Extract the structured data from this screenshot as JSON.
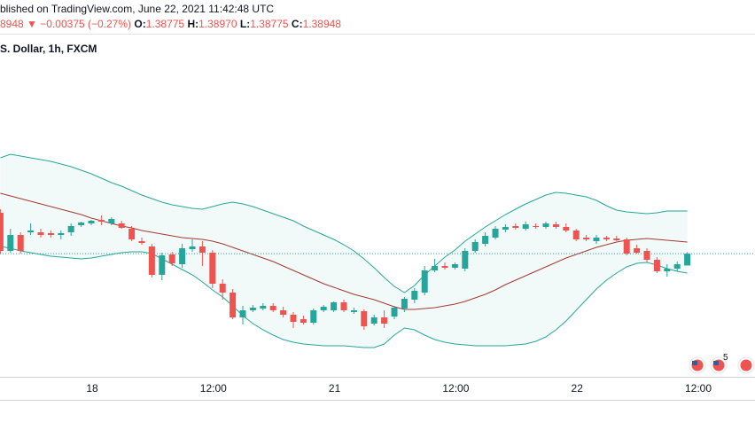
{
  "header": {
    "published": "blished on TradingView.com, June 22, 2021 11:42:48 UTC",
    "last": "8948",
    "arrow": "▼",
    "change": "−0.00375 (−0.27%)",
    "ohlc": [
      {
        "label": "O:",
        "value": "1.38775"
      },
      {
        "label": "H:",
        "value": "1.38970"
      },
      {
        "label": "L:",
        "value": "1.38775"
      },
      {
        "label": "C:",
        "value": "1.38948"
      }
    ]
  },
  "event_count": "5",
  "chart_data": {
    "type": "candlestick",
    "title": "S. Dollar, 1h, FXCM",
    "x_labels": [
      "18",
      "12:00",
      "21",
      "12:00",
      "22",
      "12:00"
    ],
    "ylim": [
      1.37143,
      1.42148
    ],
    "up_color": "#26a69a",
    "down_color": "#ef5350",
    "band_color": "#26a69a",
    "basis_color": "#a33a32",
    "candles": [
      [
        1.39548,
        1.396,
        1.3895,
        1.38989
      ],
      [
        1.38989,
        1.39314,
        1.38963,
        1.39223
      ],
      [
        1.39223,
        1.39262,
        1.3895,
        1.38989
      ],
      [
        1.39262,
        1.39392,
        1.39223,
        1.39288
      ],
      [
        1.39262,
        1.39314,
        1.39184,
        1.39223
      ],
      [
        1.39249,
        1.39288,
        1.39184,
        1.39223
      ],
      [
        1.39223,
        1.39288,
        1.39158,
        1.39249
      ],
      [
        1.39262,
        1.39392,
        1.3921,
        1.39353
      ],
      [
        1.39366,
        1.39418,
        1.3934,
        1.39405
      ],
      [
        1.39392,
        1.39444,
        1.39366,
        1.39431
      ],
      [
        1.39444,
        1.39509,
        1.39366,
        1.39418
      ],
      [
        1.39392,
        1.39483,
        1.39366,
        1.39457
      ],
      [
        1.39392,
        1.39431,
        1.39314,
        1.39327
      ],
      [
        1.39314,
        1.39353,
        1.39132,
        1.39158
      ],
      [
        1.39132,
        1.39184,
        1.3908,
        1.39106
      ],
      [
        1.39054,
        1.39093,
        1.38599,
        1.38638
      ],
      [
        1.38638,
        1.38963,
        1.3856,
        1.38924
      ],
      [
        1.38937,
        1.38976,
        1.38768,
        1.38807
      ],
      [
        1.38794,
        1.39093,
        1.38742,
        1.39028
      ],
      [
        1.39015,
        1.39158,
        1.38976,
        1.39054
      ],
      [
        1.39054,
        1.39132,
        1.38768,
        1.38963
      ],
      [
        1.38963,
        1.39002,
        1.38443,
        1.38508
      ],
      [
        1.38508,
        1.38573,
        1.38274,
        1.38378
      ],
      [
        1.38378,
        1.3843,
        1.37988,
        1.38014
      ],
      [
        1.38014,
        1.38183,
        1.3791,
        1.38118
      ],
      [
        1.38118,
        1.38196,
        1.38092,
        1.38157
      ],
      [
        1.38144,
        1.38222,
        1.38118,
        1.38183
      ],
      [
        1.38183,
        1.38222,
        1.38092,
        1.38118
      ],
      [
        1.38118,
        1.3817,
        1.38014,
        1.38053
      ],
      [
        1.38053,
        1.38092,
        1.37858,
        1.37949
      ],
      [
        1.37988,
        1.3804,
        1.3791,
        1.37936
      ],
      [
        1.37936,
        1.38144,
        1.3791,
        1.38118
      ],
      [
        1.38118,
        1.38196,
        1.38092,
        1.3817
      ],
      [
        1.38118,
        1.38248,
        1.38092,
        1.38235
      ],
      [
        1.38235,
        1.38274,
        1.38092,
        1.38118
      ],
      [
        1.38092,
        1.38157,
        1.38066,
        1.38118
      ],
      [
        1.38105,
        1.38131,
        1.37832,
        1.37884
      ],
      [
        1.37923,
        1.38053,
        1.37897,
        1.38014
      ],
      [
        1.38014,
        1.38118,
        1.37858,
        1.37923
      ],
      [
        1.38027,
        1.38183,
        1.37988,
        1.38157
      ],
      [
        1.38144,
        1.38313,
        1.38092,
        1.38287
      ],
      [
        1.38274,
        1.38443,
        1.38222,
        1.38404
      ],
      [
        1.38378,
        1.38768,
        1.38339,
        1.38703
      ],
      [
        1.38703,
        1.38872,
        1.38677,
        1.38768
      ],
      [
        1.38768,
        1.3882,
        1.38716,
        1.38742
      ],
      [
        1.38742,
        1.3882,
        1.38716,
        1.38794
      ],
      [
        1.38729,
        1.39028,
        1.3869,
        1.38989
      ],
      [
        1.38989,
        1.39158,
        1.38963,
        1.39119
      ],
      [
        1.39093,
        1.39262,
        1.39054,
        1.3921
      ],
      [
        1.39184,
        1.39353,
        1.39158,
        1.39314
      ],
      [
        1.39301,
        1.39379,
        1.39262,
        1.3934
      ],
      [
        1.39353,
        1.39392,
        1.39301,
        1.39327
      ],
      [
        1.39314,
        1.39418,
        1.39288,
        1.39379
      ],
      [
        1.39353,
        1.39392,
        1.39314,
        1.3934
      ],
      [
        1.3934,
        1.39418,
        1.39314,
        1.39392
      ],
      [
        1.39379,
        1.39418,
        1.39314,
        1.3934
      ],
      [
        1.3934,
        1.39392,
        1.39262,
        1.39288
      ],
      [
        1.39288,
        1.39314,
        1.39132,
        1.39158
      ],
      [
        1.39184,
        1.39223,
        1.39132,
        1.39158
      ],
      [
        1.39132,
        1.39223,
        1.39093,
        1.39184
      ],
      [
        1.39184,
        1.3921,
        1.39132,
        1.39158
      ],
      [
        1.39171,
        1.3921,
        1.39132,
        1.39145
      ],
      [
        1.39158,
        1.39184,
        1.38924,
        1.3895
      ],
      [
        1.39028,
        1.3908,
        1.3895,
        1.38963
      ],
      [
        1.38989,
        1.39028,
        1.3882,
        1.38859
      ],
      [
        1.38859,
        1.38898,
        1.38664,
        1.3869
      ],
      [
        1.3869,
        1.38794,
        1.38612,
        1.38729
      ],
      [
        1.38729,
        1.38833,
        1.3869,
        1.38794
      ],
      [
        1.38775,
        1.3897,
        1.38775,
        1.38948
      ]
    ],
    "bands": {
      "upper": [
        1.40354,
        1.40406,
        1.4038,
        1.40354,
        1.40328,
        1.40302,
        1.40263,
        1.40224,
        1.40172,
        1.4012,
        1.40055,
        1.3999,
        1.39938,
        1.39873,
        1.39808,
        1.39756,
        1.39704,
        1.39665,
        1.39639,
        1.39613,
        1.396,
        1.39639,
        1.39678,
        1.39704,
        1.39678,
        1.39639,
        1.39587,
        1.39535,
        1.39483,
        1.39431,
        1.39353,
        1.39288,
        1.39223,
        1.39158,
        1.3908,
        1.38989,
        1.38872,
        1.38742,
        1.38599,
        1.38469,
        1.38378,
        1.38482,
        1.38638,
        1.38768,
        1.38898,
        1.39002,
        1.39132,
        1.39236,
        1.3934,
        1.39431,
        1.39522,
        1.396,
        1.39678,
        1.39743,
        1.39808,
        1.39847,
        1.39834,
        1.39808,
        1.39782,
        1.3973,
        1.39652,
        1.39587,
        1.39561,
        1.39548,
        1.39535,
        1.39548,
        1.39574,
        1.39574,
        1.39574
      ],
      "basis": [
        1.39834,
        1.39795,
        1.39756,
        1.39717,
        1.39678,
        1.39639,
        1.396,
        1.39561,
        1.39522,
        1.3947,
        1.39431,
        1.39392,
        1.39353,
        1.39327,
        1.39288,
        1.39262,
        1.39236,
        1.3921,
        1.39184,
        1.39171,
        1.39158,
        1.39132,
        1.39093,
        1.39041,
        1.38989,
        1.38937,
        1.38885,
        1.38833,
        1.38768,
        1.38703,
        1.38638,
        1.38573,
        1.38508,
        1.38456,
        1.38404,
        1.38352,
        1.38313,
        1.38274,
        1.38222,
        1.3817,
        1.38131,
        1.38131,
        1.38144,
        1.38157,
        1.38183,
        1.38209,
        1.38248,
        1.383,
        1.38352,
        1.38417,
        1.38495,
        1.3856,
        1.38625,
        1.3869,
        1.38755,
        1.3882,
        1.38885,
        1.38937,
        1.38989,
        1.39041,
        1.3908,
        1.39119,
        1.39145,
        1.39158,
        1.39171,
        1.39158,
        1.39145,
        1.39132,
        1.39119
      ],
      "lower": [
        1.39054,
        1.39028,
        1.38989,
        1.38963,
        1.38937,
        1.38911,
        1.38898,
        1.38885,
        1.38872,
        1.38885,
        1.38911,
        1.38937,
        1.38963,
        1.38976,
        1.38976,
        1.3895,
        1.38872,
        1.38794,
        1.38716,
        1.38638,
        1.38534,
        1.38417,
        1.38313,
        1.38183,
        1.3804,
        1.37923,
        1.37832,
        1.37754,
        1.37689,
        1.3765,
        1.37624,
        1.37611,
        1.37598,
        1.37598,
        1.37598,
        1.37585,
        1.37572,
        1.37572,
        1.37624,
        1.37754,
        1.37858,
        1.37832,
        1.37754,
        1.37689,
        1.3765,
        1.37624,
        1.37611,
        1.37598,
        1.37598,
        1.37598,
        1.37598,
        1.37611,
        1.37624,
        1.37663,
        1.37728,
        1.37832,
        1.37962,
        1.38118,
        1.38274,
        1.3843,
        1.3856,
        1.38664,
        1.38755,
        1.38807,
        1.3882,
        1.38781,
        1.38729,
        1.3869,
        1.38664
      ]
    }
  }
}
